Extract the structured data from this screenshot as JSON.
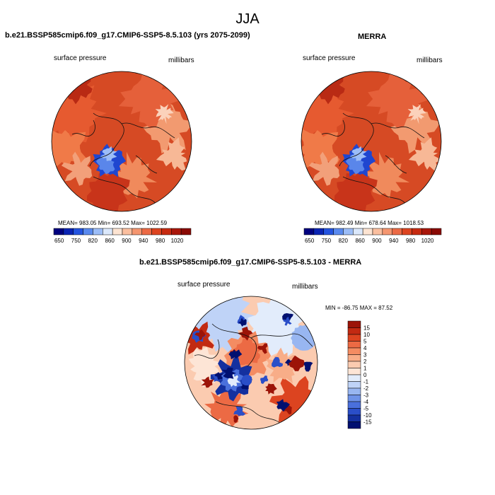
{
  "figure": {
    "title": "JJA"
  },
  "chart_data": [
    {
      "type": "heatmap",
      "title": "b.e21.BSSP585cmip6.f09_g17.CMIP6-SSP5-8.5.103 (yrs 2075-2099)",
      "variable": "surface pressure",
      "units": "millibars",
      "projection": "polar stereographic (north pole)",
      "stats": {
        "mean": 983.05,
        "min": 693.52,
        "max": 1022.59
      },
      "stats_text": "MEAN= 983.05  Min= 693.52  Max= 1022.59",
      "colorbar": {
        "tick_labels": [
          "650",
          "750",
          "820",
          "860",
          "900",
          "940",
          "980",
          "1020"
        ],
        "colors": [
          "#00007f",
          "#0a24b4",
          "#2454e0",
          "#5a8aef",
          "#9cbdf7",
          "#dbe8fb",
          "#fde4d2",
          "#fbbf9f",
          "#f59670",
          "#ec6a45",
          "#dd4420",
          "#c72a10",
          "#a9160a",
          "#8a0a05"
        ]
      }
    },
    {
      "type": "heatmap",
      "title": "MERRA",
      "variable": "surface pressure",
      "units": "millibars",
      "projection": "polar stereographic (north pole)",
      "stats": {
        "mean": 982.49,
        "min": 678.64,
        "max": 1018.53
      },
      "stats_text": "MEAN= 982.49  Min= 678.64  Max= 1018.53",
      "colorbar": {
        "tick_labels": [
          "650",
          "750",
          "820",
          "860",
          "900",
          "940",
          "980",
          "1020"
        ],
        "colors": [
          "#00007f",
          "#0a24b4",
          "#2454e0",
          "#5a8aef",
          "#9cbdf7",
          "#dbe8fb",
          "#fde4d2",
          "#fbbf9f",
          "#f59670",
          "#ec6a45",
          "#dd4420",
          "#c72a10",
          "#a9160a",
          "#8a0a05"
        ]
      }
    },
    {
      "type": "heatmap",
      "title": "b.e21.BSSP585cmip6.f09_g17.CMIP6-SSP5-8.5.103 - MERRA",
      "variable": "surface pressure",
      "units": "millibars",
      "projection": "polar stereographic (north pole)",
      "stats": {
        "min": -86.75,
        "max": 87.52
      },
      "stats_text": "MIN = -86.75 MAX =  87.52",
      "colorbar": {
        "tick_labels": [
          "15",
          "10",
          "5",
          "4",
          "3",
          "2",
          "1",
          "0",
          "-1",
          "-2",
          "-3",
          "-4",
          "-5",
          "-10",
          "-15"
        ],
        "colors": [
          "#9c1408",
          "#c22a12",
          "#dc4420",
          "#ec6a44",
          "#f48c62",
          "#f8ad88",
          "#fbcbb0",
          "#fde5d6",
          "#e2ecfb",
          "#bfd3f7",
          "#98b6f1",
          "#6f93e8",
          "#4a70dc",
          "#2a4ec8",
          "#14309f",
          "#001070"
        ]
      }
    }
  ]
}
